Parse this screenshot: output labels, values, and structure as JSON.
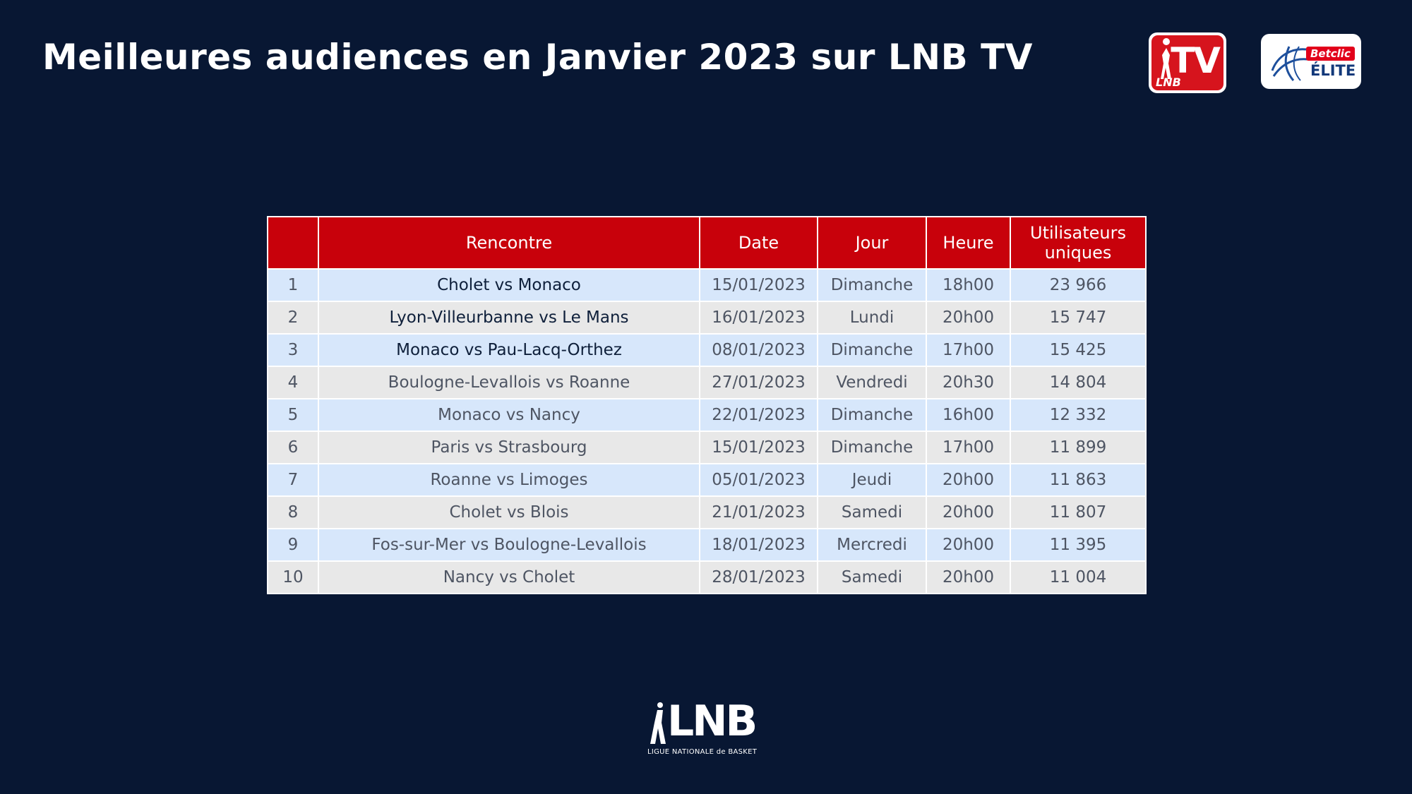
{
  "header": {
    "title": "Meilleures audiences en Janvier 2023 sur LNB TV"
  },
  "logos": {
    "tv": {
      "lnb": "LNB",
      "tv": "TV"
    },
    "elite": {
      "betclic": "Betclic",
      "elite": "ÉLITE"
    },
    "lnb": {
      "main": "LNB",
      "subtitle": "LIGUE NATIONALE de BASKET"
    }
  },
  "colors": {
    "background": "#081733",
    "header_red": "#c8010b",
    "row_blue": "#d7e7fb",
    "row_grey": "#e8e8e8"
  },
  "table": {
    "headers": [
      "",
      "Rencontre",
      "Date",
      "Jour",
      "Heure",
      "Utilisateurs uniques"
    ],
    "rows": [
      {
        "rank": "1",
        "match": "Cholet vs Monaco",
        "date": "15/01/2023",
        "day": "Dimanche",
        "time": "18h00",
        "users": "23 966"
      },
      {
        "rank": "2",
        "match": "Lyon-Villeurbanne vs Le Mans",
        "date": "16/01/2023",
        "day": "Lundi",
        "time": "20h00",
        "users": "15 747"
      },
      {
        "rank": "3",
        "match": "Monaco vs Pau-Lacq-Orthez",
        "date": "08/01/2023",
        "day": "Dimanche",
        "time": "17h00",
        "users": "15 425"
      },
      {
        "rank": "4",
        "match": "Boulogne-Levallois vs Roanne",
        "date": "27/01/2023",
        "day": "Vendredi",
        "time": "20h30",
        "users": "14 804"
      },
      {
        "rank": "5",
        "match": "Monaco vs Nancy",
        "date": "22/01/2023",
        "day": "Dimanche",
        "time": "16h00",
        "users": "12 332"
      },
      {
        "rank": "6",
        "match": "Paris vs Strasbourg",
        "date": "15/01/2023",
        "day": "Dimanche",
        "time": "17h00",
        "users": "11 899"
      },
      {
        "rank": "7",
        "match": "Roanne vs Limoges",
        "date": "05/01/2023",
        "day": "Jeudi",
        "time": "20h00",
        "users": "11 863"
      },
      {
        "rank": "8",
        "match": "Cholet vs Blois",
        "date": "21/01/2023",
        "day": "Samedi",
        "time": "20h00",
        "users": "11 807"
      },
      {
        "rank": "9",
        "match": "Fos-sur-Mer vs Boulogne-Levallois",
        "date": "18/01/2023",
        "day": "Mercredi",
        "time": "20h00",
        "users": "11 395"
      },
      {
        "rank": "10",
        "match": "Nancy vs Cholet",
        "date": "28/01/2023",
        "day": "Samedi",
        "time": "20h00",
        "users": "11 004"
      }
    ]
  }
}
